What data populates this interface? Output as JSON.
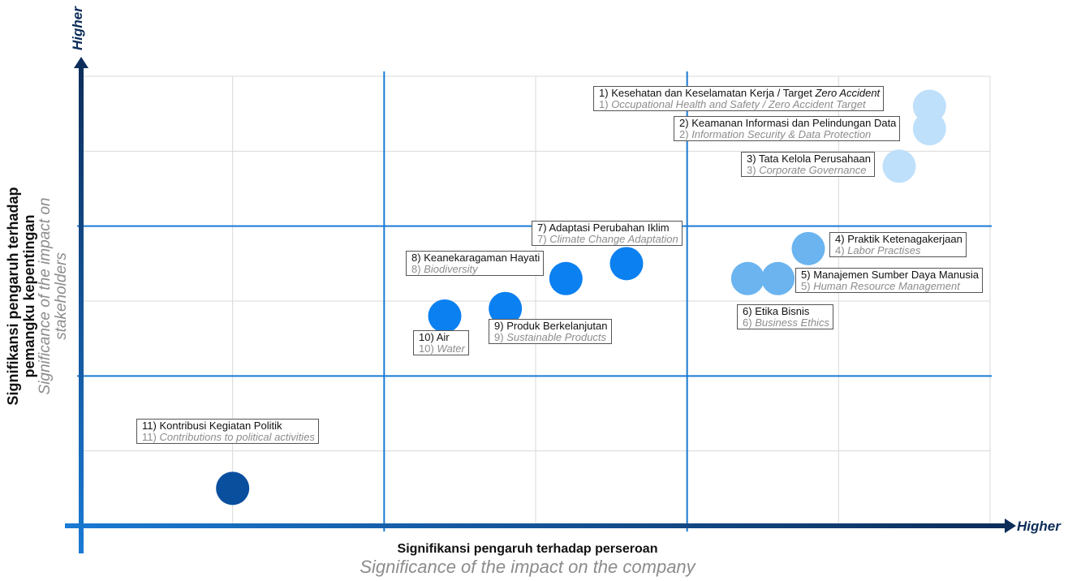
{
  "axes": {
    "x_higher": "Higher",
    "y_higher": "Higher",
    "xlabel": "Signifikansi pengaruh terhadap perseroan",
    "xlabel_en": "Significance of the impact on the company",
    "ylabel_line1": "Signifikansi pengaruh terhadap",
    "ylabel_line2": "pemangku kepentingan",
    "ylabel_en_line1": "Significance of the impact on",
    "ylabel_en_line2": "stakeholders"
  },
  "colors": {
    "axis": "#0d2d5a",
    "grid_major": "#1a7ad4",
    "grid_minor": "#d9d9d9",
    "bubble_dark": "#0a4f9e",
    "bubble_mid": "#0b80f0",
    "bubble_light": "#6bb4ef",
    "bubble_pale": "#bfe0fb"
  },
  "chart_data": {
    "type": "scatter",
    "title": "",
    "xlabel": "Signifikansi pengaruh terhadap perseroan / Significance of the impact on the company",
    "ylabel": "Signifikansi pengaruh terhadap pemangku kepentingan / Significance of the impact on stakeholders",
    "xlim": [
      0,
      6
    ],
    "ylim": [
      0,
      6
    ],
    "grid": true,
    "major_grid": [
      2,
      4
    ],
    "points": [
      {
        "num": "1)",
        "label": "Kesehatan dan Keselamatan Kerja / Target ",
        "label_italic": "Zero Accident",
        "label_en": "Occupational Health and Safety / Zero Accident Target",
        "x": 5.6,
        "y": 5.6,
        "color": "pale"
      },
      {
        "num": "2)",
        "label": "Keamanan Informasi dan Pelindungan Data",
        "label_italic": "",
        "label_en": "Information Security & Data Protection",
        "x": 5.6,
        "y": 5.3,
        "color": "pale"
      },
      {
        "num": "3)",
        "label": "Tata Kelola Perusahaan",
        "label_italic": "",
        "label_en": "Corporate Governance",
        "x": 5.4,
        "y": 4.8,
        "color": "pale"
      },
      {
        "num": "4)",
        "label": "Praktik Ketenagakerjaan",
        "label_italic": "",
        "label_en": "Labor Practises",
        "x": 4.8,
        "y": 3.7,
        "color": "light"
      },
      {
        "num": "5)",
        "label": "Manajemen Sumber Daya Manusia",
        "label_italic": "",
        "label_en": "Human Resource Management",
        "x": 4.6,
        "y": 3.3,
        "color": "light"
      },
      {
        "num": "6)",
        "label": "Etika Bisnis",
        "label_italic": "",
        "label_en": "Business Ethics",
        "x": 4.4,
        "y": 3.3,
        "color": "light"
      },
      {
        "num": "7)",
        "label": "Adaptasi Perubahan Iklim",
        "label_italic": "",
        "label_en": "Climate Change Adaptation",
        "x": 3.6,
        "y": 3.5,
        "color": "mid"
      },
      {
        "num": "8)",
        "label": "Keanekaragaman Hayati",
        "label_italic": "",
        "label_en": "Biodiversity",
        "x": 3.2,
        "y": 3.3,
        "color": "mid"
      },
      {
        "num": "9)",
        "label": "Produk Berkelanjutan",
        "label_italic": "",
        "label_en": "Sustainable Products",
        "x": 2.8,
        "y": 2.9,
        "color": "mid"
      },
      {
        "num": "10)",
        "label": "Air",
        "label_italic": "",
        "label_en": "Water",
        "x": 2.4,
        "y": 2.8,
        "color": "mid"
      },
      {
        "num": "11)",
        "label": "Kontribusi Kegiatan Politik",
        "label_italic": "",
        "label_en": "Contributions to political activities",
        "x": 1.0,
        "y": 0.5,
        "color": "dark"
      }
    ]
  }
}
